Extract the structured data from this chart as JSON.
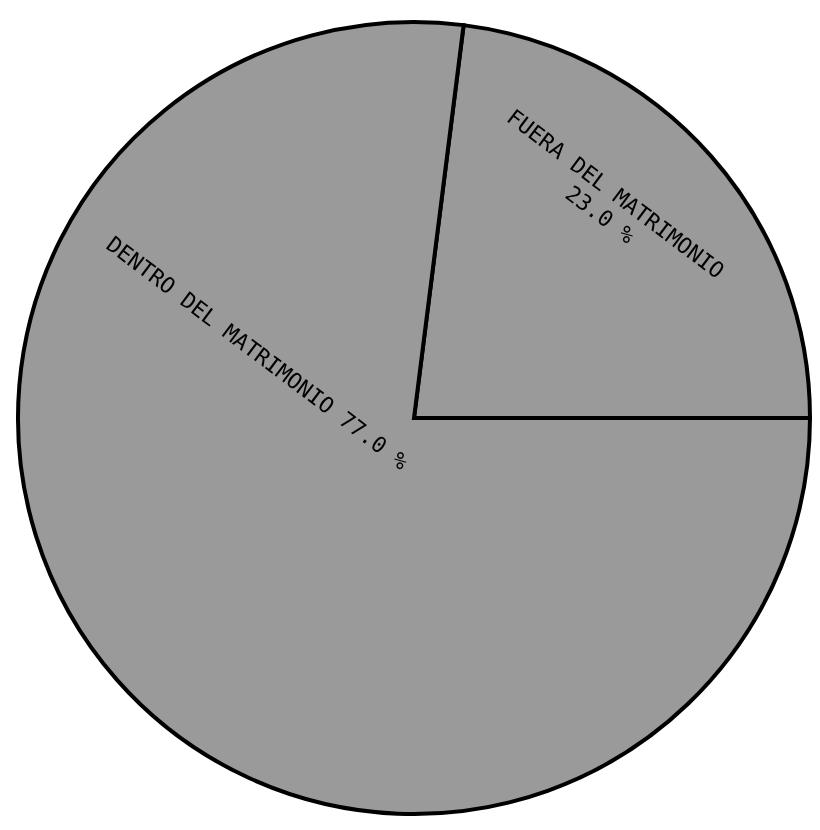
{
  "chart_data": {
    "type": "pie",
    "categories": [
      "FUERA DEL MATRIMONIO",
      "DENTRO DEL MATRIMONIO"
    ],
    "values": [
      23.0,
      77.0
    ],
    "value_labels": [
      "23.0 %",
      "77.0 %"
    ],
    "colors": [
      "#9a9a9a",
      "#9a9a9a"
    ]
  }
}
